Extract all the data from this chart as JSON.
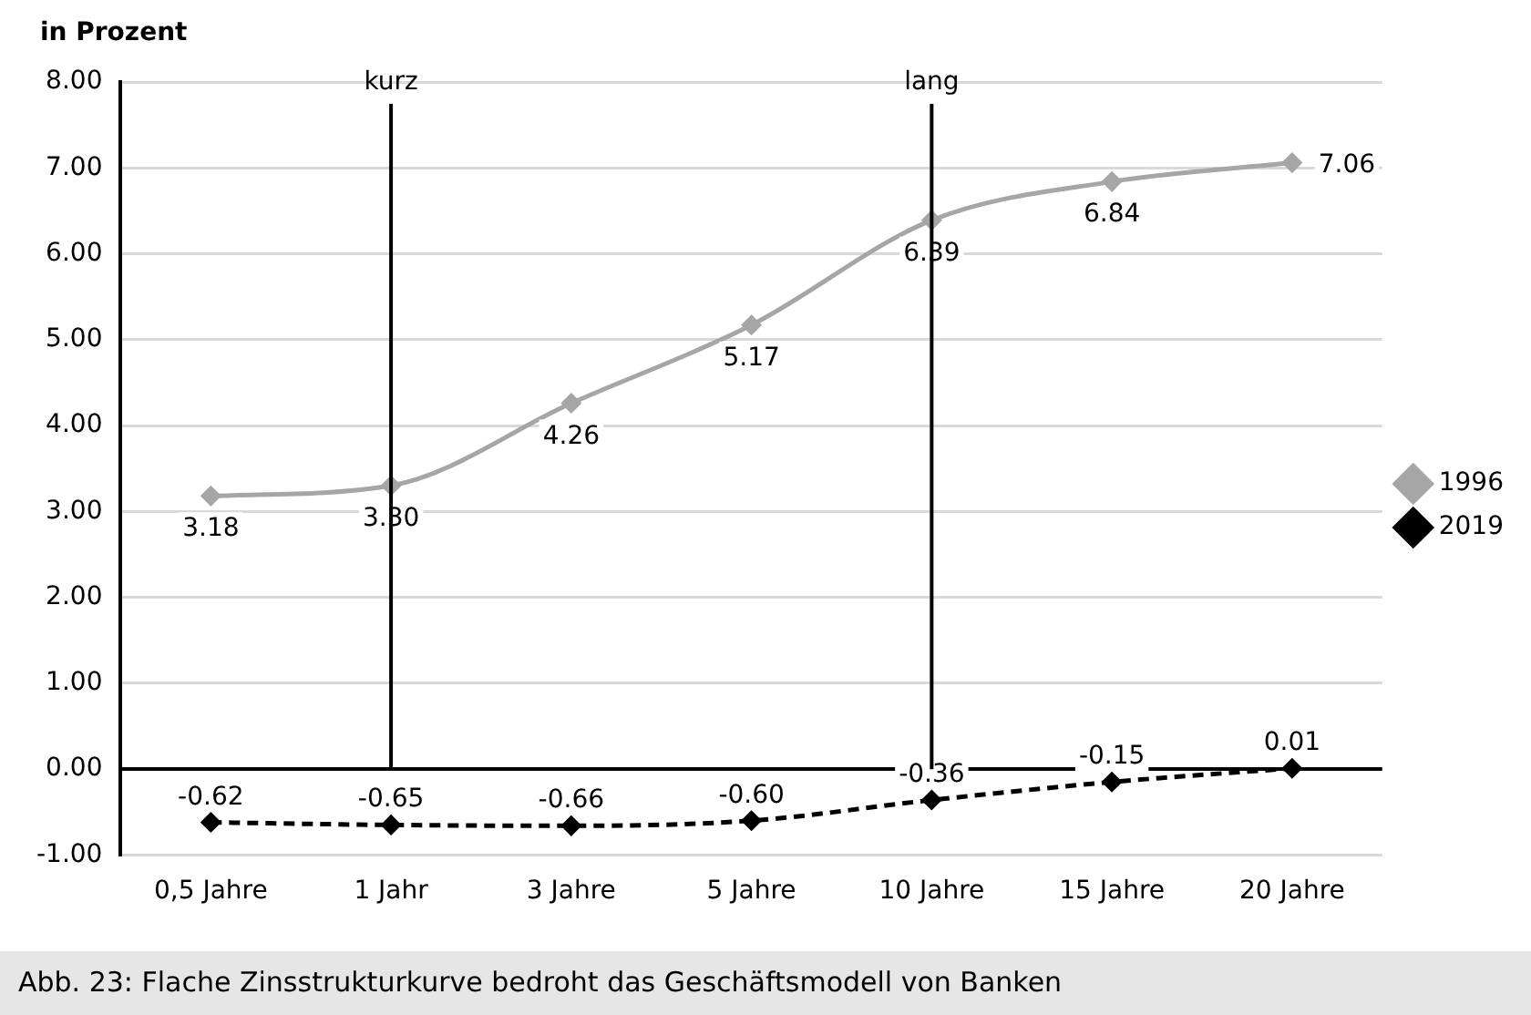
{
  "chart_data": {
    "type": "line",
    "ylabel": "in Prozent",
    "categories": [
      "0,5 Jahre",
      "1 Jahr",
      "3 Jahre",
      "5 Jahre",
      "10 Jahre",
      "15 Jahre",
      "20 Jahre"
    ],
    "series": [
      {
        "name": "1996",
        "color": "#a6a6a6",
        "values": [
          3.18,
          3.3,
          4.26,
          5.17,
          6.39,
          6.84,
          7.06
        ],
        "value_labels": [
          "3.18",
          "3.30",
          "4.26",
          "5.17",
          "6.39",
          "6.84",
          "7.06"
        ],
        "line_style": "solid"
      },
      {
        "name": "2019",
        "color": "#000000",
        "values": [
          -0.62,
          -0.65,
          -0.66,
          -0.6,
          -0.36,
          -0.15,
          0.01
        ],
        "value_labels": [
          "-0.62",
          "-0.65",
          "-0.66",
          "-0.60",
          "-0.36",
          "-0.15",
          "0.01"
        ],
        "line_style": "dashed"
      }
    ],
    "ylim": [
      -1,
      8
    ],
    "yticks": [
      {
        "value": -1,
        "label": "-1.00"
      },
      {
        "value": 0,
        "label": "0.00"
      },
      {
        "value": 1,
        "label": "1.00"
      },
      {
        "value": 2,
        "label": "2.00"
      },
      {
        "value": 3,
        "label": "3.00"
      },
      {
        "value": 4,
        "label": "4.00"
      },
      {
        "value": 5,
        "label": "5.00"
      },
      {
        "value": 6,
        "label": "6.00"
      },
      {
        "value": 7,
        "label": "7.00"
      },
      {
        "value": 8,
        "label": "8.00"
      }
    ],
    "ref_lines": [
      {
        "axis": "x",
        "value": "1 Jahr",
        "label": "kurz",
        "color": "#000000"
      },
      {
        "axis": "x",
        "value": "10 Jahre",
        "label": "lang",
        "color": "#000000"
      }
    ],
    "grid": "y",
    "legend": "right",
    "marker": "diamond",
    "annotations": [
      "Abb. 23: Flache Zinsstrukturkurve bedroht das Geschäftsmodell von Banken"
    ]
  }
}
